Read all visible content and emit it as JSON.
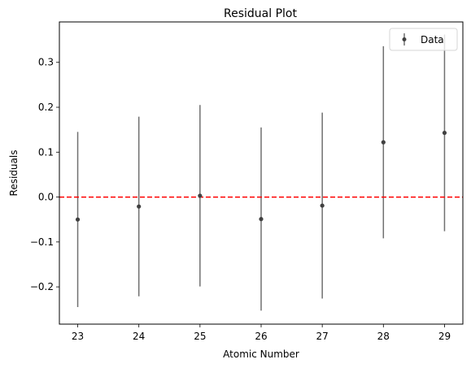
{
  "chart_data": {
    "type": "scatter",
    "title": "Residual Plot",
    "xlabel": "Atomic Number",
    "ylabel": "Residuals",
    "xlim": [
      22.7,
      29.3
    ],
    "ylim": [
      -0.283,
      0.39
    ],
    "x_ticks": [
      23,
      24,
      25,
      26,
      27,
      28,
      29
    ],
    "y_ticks": [
      -0.2,
      -0.1,
      0.0,
      0.1,
      0.2,
      0.3
    ],
    "y_tick_labels": [
      "−0.2",
      "−0.1",
      "0.0",
      "0.1",
      "0.2",
      "0.3"
    ],
    "legend_position": "top-right",
    "grid": false,
    "reference_line": {
      "y": 0.0,
      "color": "#ff0000",
      "style": "dashed"
    },
    "series": [
      {
        "name": "Data",
        "marker_color": "#404040",
        "errorbar_color": "#707070",
        "points": [
          {
            "x": 23,
            "y": -0.05,
            "err_low": 0.195,
            "err_high": 0.195
          },
          {
            "x": 24,
            "y": -0.021,
            "err_low": 0.2,
            "err_high": 0.2
          },
          {
            "x": 25,
            "y": 0.003,
            "err_low": 0.202,
            "err_high": 0.202
          },
          {
            "x": 26,
            "y": -0.049,
            "err_low": 0.204,
            "err_high": 0.204
          },
          {
            "x": 27,
            "y": -0.019,
            "err_low": 0.207,
            "err_high": 0.207
          },
          {
            "x": 28,
            "y": 0.122,
            "err_low": 0.214,
            "err_high": 0.214
          },
          {
            "x": 29,
            "y": 0.143,
            "err_low": 0.219,
            "err_high": 0.219
          }
        ]
      }
    ]
  }
}
